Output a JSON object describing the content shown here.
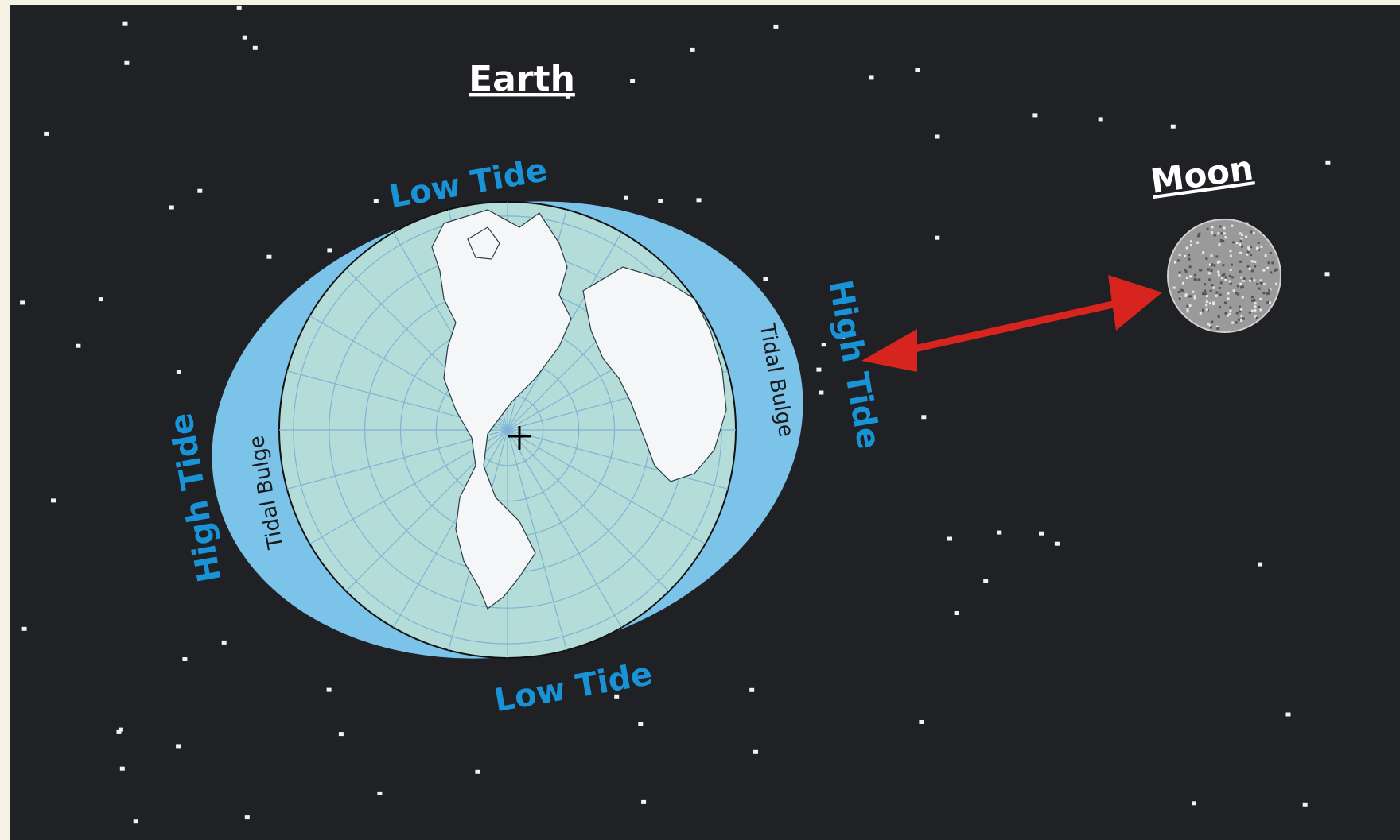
{
  "labels": {
    "earth": "Earth",
    "moon": "Moon",
    "low_tide_top": "Low Tide",
    "low_tide_bottom": "Low Tide",
    "high_tide_left": "High Tide",
    "high_tide_right": "High Tide",
    "tidal_bulge_left": "Tidal Bulge",
    "tidal_bulge_right": "Tidal Bulge"
  },
  "colors": {
    "space": "#1f2124",
    "tidal_bulge": "#7cc3ea",
    "ocean": "#b4dcd9",
    "land": "#f4f6f7",
    "arrow": "#d8241f",
    "label_blue": "#1a93d6",
    "moon": "#9a9a9a"
  },
  "icons": {
    "arrow": "double-headed-arrow-icon"
  }
}
